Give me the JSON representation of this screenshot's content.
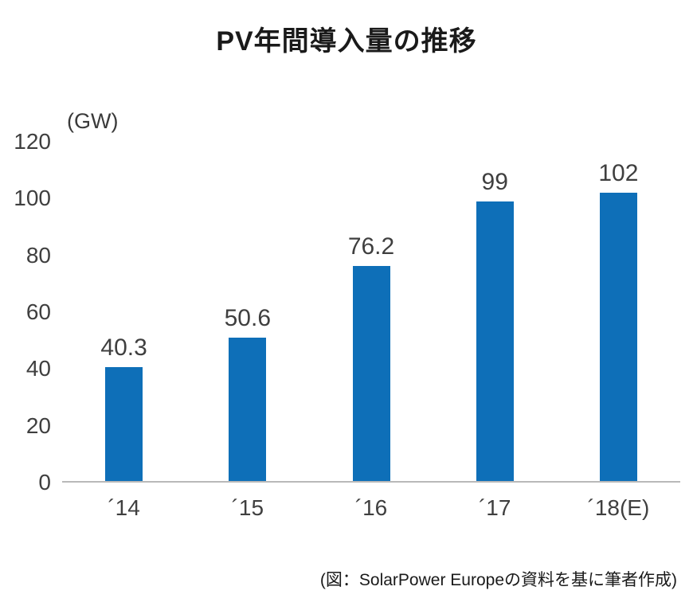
{
  "chart_data": {
    "type": "bar",
    "title": "PV年間導入量の推移",
    "unit_label": "(GW)",
    "categories": [
      "´14",
      "´15",
      "´16",
      "´17",
      "´18(E)"
    ],
    "values": [
      40.3,
      50.6,
      76.2,
      99,
      102
    ],
    "value_labels": [
      "40.3",
      "50.6",
      "76.2",
      "99",
      "102"
    ],
    "xlabel": "",
    "ylabel": "(GW)",
    "ylim": [
      0,
      120
    ],
    "yticks": [
      0,
      20,
      40,
      60,
      80,
      100,
      120
    ],
    "bar_color": "#0e6fb8",
    "grid": false,
    "legend_position": "none"
  },
  "caption": "(図：SolarPower Europeの資料を基に筆者作成)"
}
